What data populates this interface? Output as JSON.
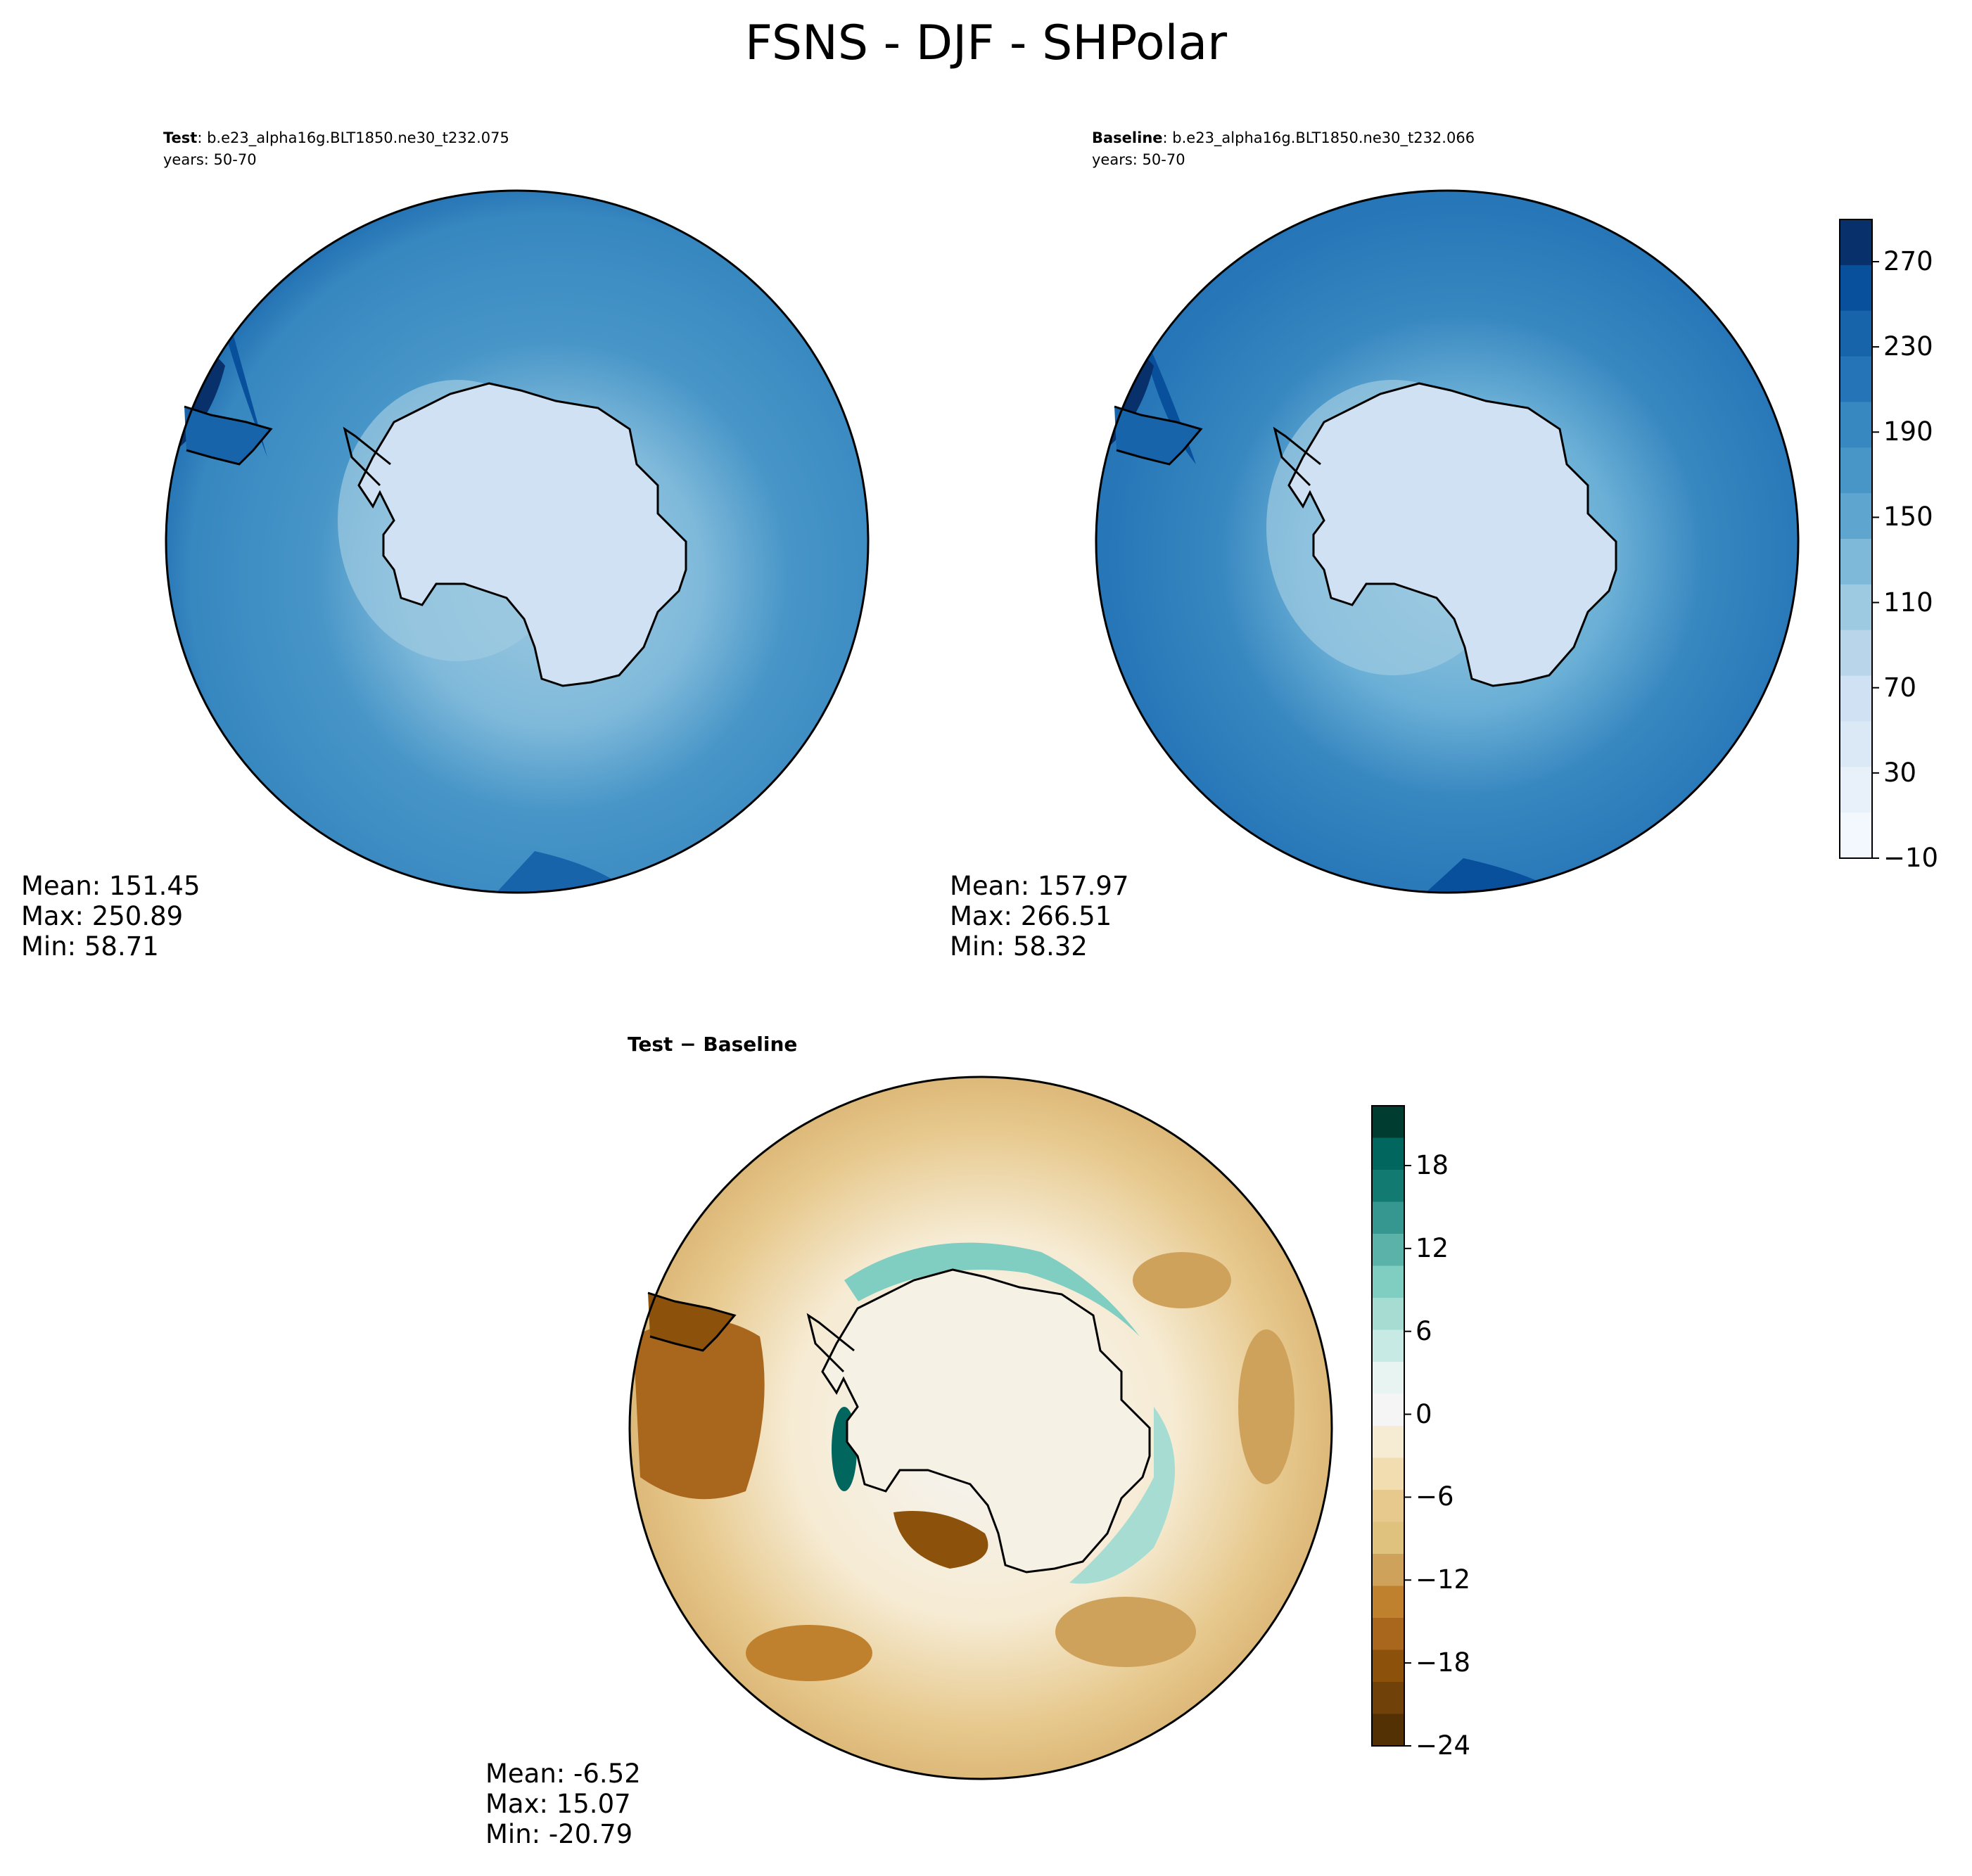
{
  "main_title": "FSNS - DJF - SHPolar",
  "panels": {
    "test": {
      "label": "Test",
      "run": "b.e23_alpha16g.BLT1850.ne30_t232.075",
      "years": "years: 50-70",
      "mean": "Mean: 151.45",
      "max": "Max: 250.89",
      "min": "Min: 58.71"
    },
    "baseline": {
      "label": "Baseline",
      "run": "b.e23_alpha16g.BLT1850.ne30_t232.066",
      "years": "years: 50-70",
      "mean": "Mean: 157.97",
      "max": "Max: 266.51",
      "min": "Min: 58.32"
    },
    "diff": {
      "label": "Test − Baseline",
      "mean": "Mean: -6.52",
      "max": "Max: 15.07",
      "min": "Min: -20.79"
    }
  },
  "colorbar_main": {
    "ticks": [
      "270",
      "230",
      "190",
      "150",
      "110",
      "70",
      "30",
      "−10"
    ],
    "colors": [
      "#08306b",
      "#08509c",
      "#1764ab",
      "#2474b7",
      "#3787c0",
      "#4896c8",
      "#5ea6d0",
      "#7fb9da",
      "#9ecae1",
      "#b8d5ea",
      "#cfe1f2",
      "#dbe9f6",
      "#e8f1fa",
      "#f3f8fe"
    ]
  },
  "colorbar_diff": {
    "ticks": [
      "18",
      "12",
      "6",
      "0",
      "−6",
      "−12",
      "−18",
      "−24"
    ],
    "colors": [
      "#003c30",
      "#01665e",
      "#137a71",
      "#35978f",
      "#5ab2a8",
      "#80cdc1",
      "#a6dcd2",
      "#c7eae5",
      "#e7f4f2",
      "#f5f5f5",
      "#f6ebd3",
      "#f1ddb0",
      "#e7c98e",
      "#dfc27d",
      "#cfa25b",
      "#bf812d",
      "#a9671e",
      "#8c510a",
      "#71410a",
      "#543005"
    ]
  }
}
